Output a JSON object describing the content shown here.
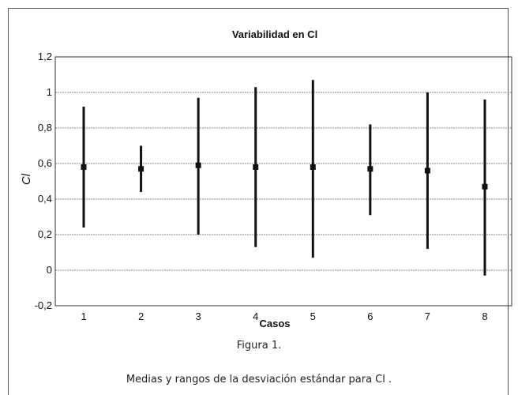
{
  "chart_data": {
    "type": "errorbar",
    "title": "Variabilidad en Cl",
    "xlabel": "Casos",
    "ylabel": "Cl",
    "ylim": [
      -0.2,
      1.2
    ],
    "yticks": [
      "-0,2",
      "0",
      "0,2",
      "0,4",
      "0,6",
      "0,8",
      "1",
      "1,2"
    ],
    "ytick_values": [
      -0.2,
      0,
      0.2,
      0.4,
      0.6,
      0.8,
      1,
      1.2
    ],
    "categories": [
      "1",
      "2",
      "3",
      "4",
      "5",
      "6",
      "7",
      "8"
    ],
    "grid": true,
    "series": [
      {
        "means": [
          0.58,
          0.57,
          0.59,
          0.58,
          0.58,
          0.57,
          0.56,
          0.47
        ],
        "low": [
          0.24,
          0.44,
          0.2,
          0.13,
          0.07,
          0.31,
          0.12,
          -0.03
        ],
        "high": [
          0.92,
          0.7,
          0.97,
          1.03,
          1.07,
          0.82,
          1.0,
          0.96
        ]
      }
    ]
  },
  "figure_label": "Figura 1.",
  "caption": "Medias y rangos de la desviación estándar para Cl ."
}
